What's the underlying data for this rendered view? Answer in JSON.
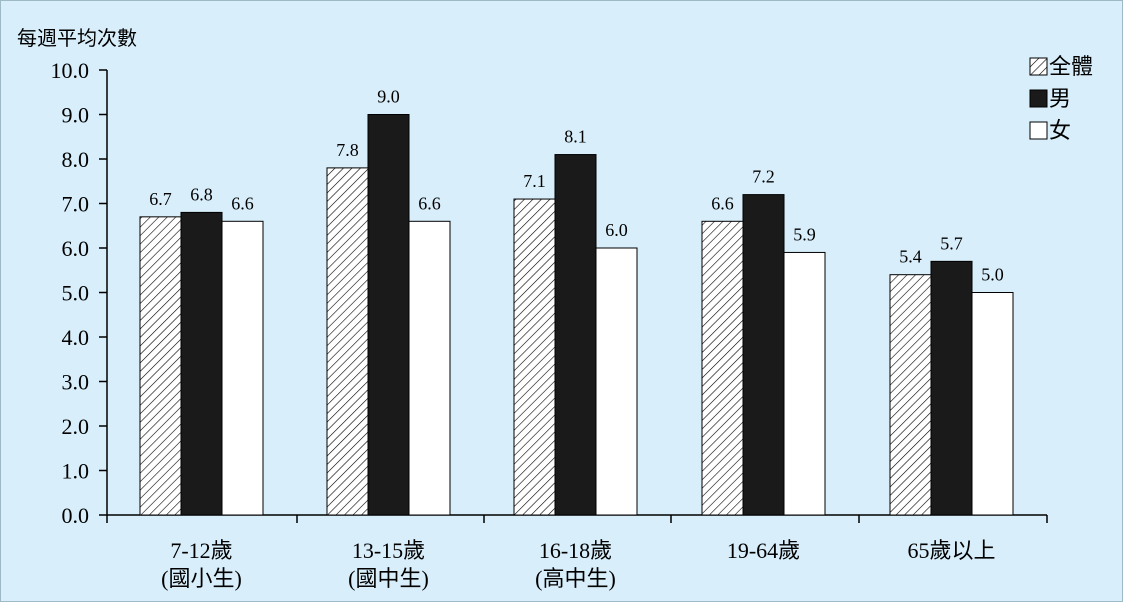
{
  "chart_data": {
    "type": "bar",
    "ylabel": "每週平均次數",
    "ylim": [
      0,
      10
    ],
    "yticks": [
      "0.0",
      "1.0",
      "2.0",
      "3.0",
      "4.0",
      "5.0",
      "6.0",
      "7.0",
      "8.0",
      "9.0",
      "10.0"
    ],
    "categories": [
      [
        "7-12歲",
        "(國小生)"
      ],
      [
        "13-15歲",
        "(國中生)"
      ],
      [
        "16-18歲",
        "(高中生)"
      ],
      [
        "19-64歲"
      ],
      [
        "65歲以上"
      ]
    ],
    "series": [
      {
        "name": "全體",
        "style": "hatched",
        "values": [
          6.7,
          7.8,
          7.1,
          6.6,
          5.4
        ],
        "labels": [
          "6.7",
          "7.8",
          "7.1",
          "6.6",
          "5.4"
        ]
      },
      {
        "name": "男",
        "style": "black",
        "values": [
          6.8,
          9.0,
          8.1,
          7.2,
          5.7
        ],
        "labels": [
          "6.8",
          "9.0",
          "8.1",
          "7.2",
          "5.7"
        ]
      },
      {
        "name": "女",
        "style": "white",
        "values": [
          6.6,
          6.6,
          6.0,
          5.9,
          5.0
        ],
        "labels": [
          "6.6",
          "6.6",
          "6.0",
          "5.9",
          "5.0"
        ]
      }
    ],
    "legend_position": "top-right",
    "grid": false
  },
  "colors": {
    "background": "#d8eefa",
    "male_fill": "#1a1a1a",
    "female_fill": "#ffffff",
    "stroke": "#000000"
  }
}
